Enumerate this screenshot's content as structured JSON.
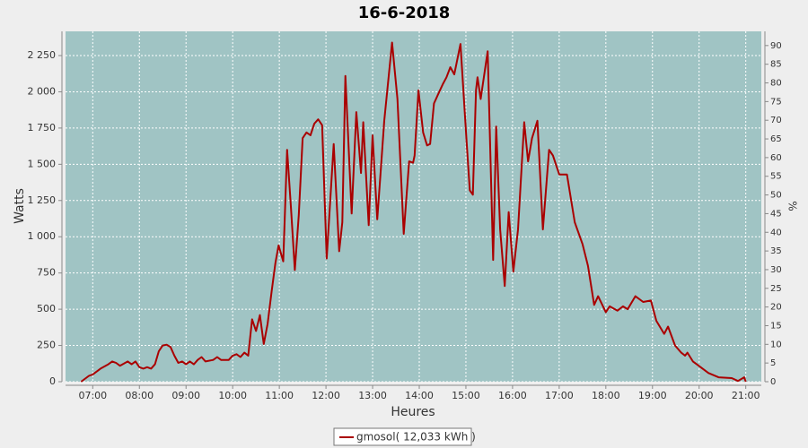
{
  "chart_data": {
    "type": "line",
    "title": "16-6-2018",
    "x_label": "Heures",
    "y_label": "Watts",
    "y2_label": "%",
    "xlim": [
      "06:25",
      "21:20"
    ],
    "xticks": [
      "07:00",
      "08:00",
      "09:00",
      "10:00",
      "11:00",
      "12:00",
      "13:00",
      "14:00",
      "15:00",
      "16:00",
      "17:00",
      "18:00",
      "19:00",
      "20:00",
      "21:00"
    ],
    "ylim": [
      0,
      2417
    ],
    "yticks": [
      0,
      250,
      500,
      750,
      {
        "value": 1000,
        "label": "1 000"
      },
      {
        "value": 1250,
        "label": "1 250"
      },
      {
        "value": 1500,
        "label": "1 500"
      },
      {
        "value": 1750,
        "label": "1 750"
      },
      {
        "value": 2000,
        "label": "2 000"
      },
      {
        "value": 2250,
        "label": "2 250"
      }
    ],
    "y2lim": [
      0,
      93.8
    ],
    "y2ticks": [
      0,
      5,
      10,
      15,
      20,
      25,
      30,
      35,
      40,
      45,
      50,
      55,
      60,
      65,
      70,
      75,
      80,
      85,
      90
    ],
    "grid": true,
    "legend": "bottom",
    "x": [
      "06:45",
      "06:55",
      "07:00",
      "07:10",
      "07:20",
      "07:25",
      "07:30",
      "07:35",
      "07:45",
      "07:50",
      "07:55",
      "08:00",
      "08:05",
      "08:10",
      "08:15",
      "08:20",
      "08:25",
      "08:30",
      "08:35",
      "08:40",
      "08:45",
      "08:50",
      "08:55",
      "09:00",
      "09:05",
      "09:10",
      "09:15",
      "09:20",
      "09:25",
      "09:35",
      "09:40",
      "09:45",
      "09:55",
      "10:00",
      "10:05",
      "10:10",
      "10:15",
      "10:20",
      "10:25",
      "10:30",
      "10:35",
      "10:40",
      "10:45",
      "10:50",
      "10:55",
      "10:59",
      "11:05",
      "11:10",
      "11:15",
      "11:20",
      "11:25",
      "11:30",
      "11:35",
      "11:40",
      "11:45",
      "11:50",
      "11:55",
      "12:01",
      "12:10",
      "12:17",
      "12:21",
      "12:25",
      "12:33",
      "12:39",
      "12:45",
      "12:48",
      "12:55",
      "13:00",
      "13:06",
      "13:11",
      "13:15",
      "13:25",
      "13:32",
      "13:40",
      "13:47",
      "13:52",
      "13:54",
      "13:59",
      "14:05",
      "14:10",
      "14:14",
      "14:19",
      "14:24",
      "14:30",
      "14:35",
      "14:40",
      "14:45",
      "14:53",
      "15:01",
      "15:05",
      "15:09",
      "15:13",
      "15:15",
      "15:19",
      "15:28",
      "15:35",
      "15:39",
      "15:44",
      "15:50",
      "15:55",
      "16:01",
      "16:07",
      "16:15",
      "16:20",
      "16:25",
      "16:32",
      "16:39",
      "16:47",
      "16:52",
      "17:00",
      "17:10",
      "17:20",
      "17:30",
      "17:37",
      "17:45",
      "17:50",
      "18:00",
      "18:05",
      "18:15",
      "18:22",
      "18:28",
      "18:38",
      "18:48",
      "18:58",
      "19:05",
      "19:15",
      "19:20",
      "19:29",
      "19:37",
      "19:42",
      "19:45",
      "19:52",
      "19:57",
      "20:12",
      "20:25",
      "20:42",
      "20:50",
      "20:58",
      "21:00"
    ],
    "series": [
      {
        "name": "gmosol( 12,033 kWh )",
        "color": "#aa0000",
        "values": [
          0,
          40,
          50,
          90,
          120,
          140,
          130,
          110,
          140,
          120,
          140,
          100,
          90,
          100,
          90,
          120,
          210,
          250,
          255,
          240,
          180,
          130,
          140,
          120,
          140,
          120,
          150,
          170,
          140,
          150,
          170,
          150,
          150,
          180,
          190,
          170,
          200,
          180,
          430,
          350,
          460,
          260,
          400,
          620,
          820,
          940,
          830,
          1600,
          1200,
          770,
          1150,
          1680,
          1720,
          1700,
          1780,
          1810,
          1770,
          850,
          1640,
          900,
          1100,
          2110,
          1160,
          1860,
          1440,
          1790,
          1080,
          1700,
          1120,
          1500,
          1800,
          2340,
          1950,
          1020,
          1520,
          1510,
          1560,
          2010,
          1720,
          1630,
          1640,
          1920,
          1980,
          2050,
          2100,
          2170,
          2120,
          2330,
          1650,
          1320,
          1290,
          2010,
          2100,
          1950,
          2280,
          840,
          1760,
          1050,
          660,
          1170,
          760,
          1050,
          1790,
          1520,
          1680,
          1800,
          1050,
          1600,
          1560,
          1430,
          1430,
          1100,
          950,
          800,
          530,
          590,
          480,
          520,
          490,
          520,
          500,
          590,
          550,
          560,
          420,
          330,
          380,
          250,
          200,
          180,
          200,
          140,
          120,
          60,
          30,
          25,
          5,
          30,
          0
        ]
      }
    ]
  }
}
